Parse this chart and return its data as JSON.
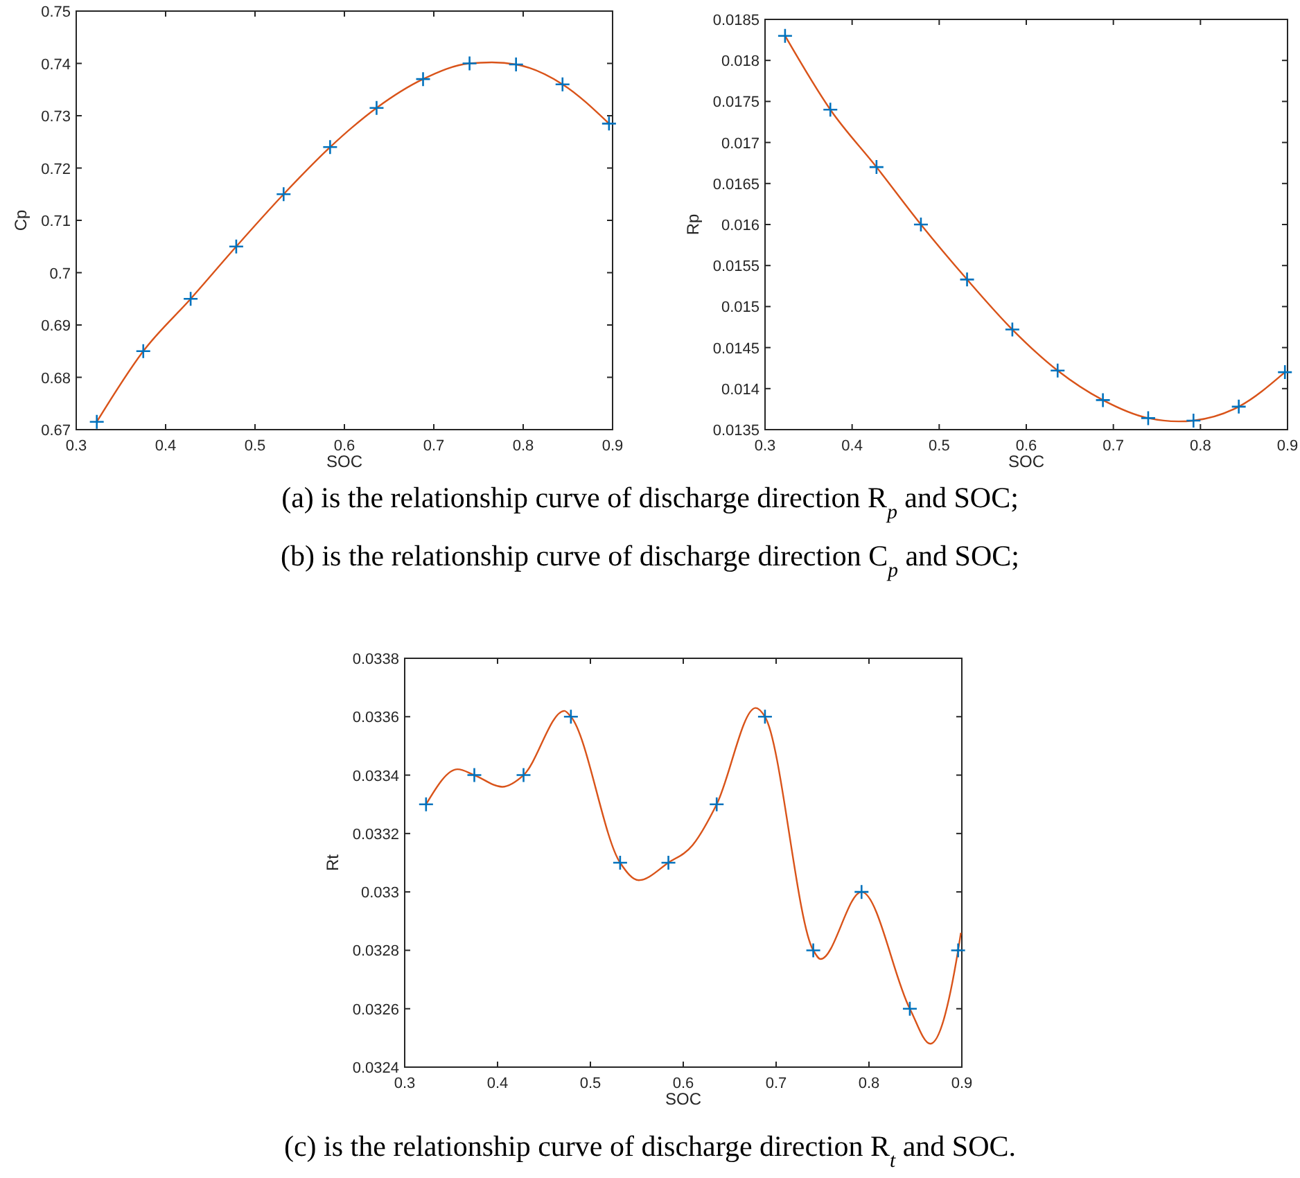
{
  "chart_data": [
    {
      "type": "line",
      "xlabel": "SOC",
      "ylabel": "Cp",
      "xlim": [
        0.3,
        0.9
      ],
      "xticks": [
        0.3,
        0.4,
        0.5,
        0.6,
        0.7,
        0.8,
        0.9
      ],
      "ylim": [
        0.67,
        0.75
      ],
      "yticks": [
        0.67,
        0.68,
        0.69,
        0.7,
        0.71,
        0.72,
        0.73,
        0.74,
        0.75
      ],
      "grid": false,
      "annotations": [
        "(a) is the relationship curve of discharge direction R$_{p}$ and SOC;"
      ],
      "series": [
        {
          "type": "line",
          "color": "#d95319",
          "marker": "none",
          "x": [
            0.323,
            0.375,
            0.428,
            0.479,
            0.532,
            0.584,
            0.636,
            0.688,
            0.74,
            0.765,
            0.792,
            0.844,
            0.896
          ],
          "values": [
            0.6715,
            0.685,
            0.695,
            0.705,
            0.715,
            0.724,
            0.7315,
            0.737,
            0.74,
            0.7402,
            0.7398,
            0.736,
            0.7285
          ]
        },
        {
          "type": "scatter",
          "color": "#0072bd",
          "marker": "cross",
          "x": [
            0.323,
            0.375,
            0.428,
            0.479,
            0.532,
            0.584,
            0.636,
            0.688,
            0.74,
            0.792,
            0.844,
            0.896
          ],
          "values": [
            0.6715,
            0.685,
            0.695,
            0.705,
            0.715,
            0.724,
            0.7315,
            0.737,
            0.74,
            0.7398,
            0.736,
            0.7285
          ]
        }
      ]
    },
    {
      "type": "line",
      "xlabel": "SOC",
      "ylabel": "Rp",
      "xlim": [
        0.3,
        0.9
      ],
      "xticks": [
        0.3,
        0.4,
        0.5,
        0.6,
        0.7,
        0.8,
        0.9
      ],
      "ylim": [
        0.0135,
        0.0185
      ],
      "yticks": [
        0.0135,
        0.014,
        0.0145,
        0.015,
        0.0155,
        0.016,
        0.0165,
        0.017,
        0.0175,
        0.018,
        0.0185
      ],
      "grid": false,
      "annotations": [
        "(b) is the relationship curve of discharge direction C$_{p}$ and SOC;"
      ],
      "series": [
        {
          "type": "line",
          "color": "#d95319",
          "marker": "none",
          "x": [
            0.323,
            0.375,
            0.428,
            0.479,
            0.532,
            0.584,
            0.636,
            0.688,
            0.74,
            0.775,
            0.792,
            0.844,
            0.897
          ],
          "values": [
            0.0183,
            0.0174,
            0.0167,
            0.016,
            0.01533,
            0.01472,
            0.01422,
            0.01386,
            0.01364,
            0.0136,
            0.01361,
            0.01378,
            0.0142
          ]
        },
        {
          "type": "scatter",
          "color": "#0072bd",
          "marker": "cross",
          "x": [
            0.323,
            0.375,
            0.428,
            0.479,
            0.532,
            0.584,
            0.636,
            0.688,
            0.74,
            0.792,
            0.844,
            0.897
          ],
          "values": [
            0.0183,
            0.0174,
            0.0167,
            0.016,
            0.01533,
            0.01472,
            0.01422,
            0.01386,
            0.01364,
            0.01361,
            0.01378,
            0.0142
          ]
        }
      ]
    },
    {
      "type": "line",
      "xlabel": "SOC",
      "ylabel": "Rt",
      "xlim": [
        0.3,
        0.9
      ],
      "xticks": [
        0.3,
        0.4,
        0.5,
        0.6,
        0.7,
        0.8,
        0.9
      ],
      "ylim": [
        0.0324,
        0.0338
      ],
      "yticks": [
        0.0324,
        0.0326,
        0.0328,
        0.033,
        0.0332,
        0.0334,
        0.0336,
        0.0338
      ],
      "grid": false,
      "annotations": [
        "(c) is the relationship curve of discharge direction R$_{t}$ and SOC."
      ],
      "series": [
        {
          "type": "line",
          "color": "#d95319",
          "marker": "none",
          "x": [
            0.323,
            0.357,
            0.375,
            0.405,
            0.428,
            0.472,
            0.479,
            0.532,
            0.552,
            0.584,
            0.61,
            0.636,
            0.678,
            0.688,
            0.74,
            0.748,
            0.792,
            0.844,
            0.866,
            0.896,
            0.899
          ],
          "values": [
            0.0333,
            0.03342,
            0.0334,
            0.03336,
            0.0334,
            0.03362,
            0.0336,
            0.0331,
            0.03304,
            0.0331,
            0.03316,
            0.0333,
            0.03363,
            0.0336,
            0.0328,
            0.03277,
            0.033,
            0.0326,
            0.03248,
            0.0328,
            0.03286
          ]
        },
        {
          "type": "scatter",
          "color": "#0072bd",
          "marker": "cross",
          "x": [
            0.323,
            0.375,
            0.428,
            0.479,
            0.532,
            0.584,
            0.636,
            0.688,
            0.74,
            0.792,
            0.844,
            0.896
          ],
          "values": [
            0.0333,
            0.0334,
            0.0334,
            0.0336,
            0.0331,
            0.0331,
            0.0333,
            0.0336,
            0.0328,
            0.033,
            0.0326,
            0.0328
          ]
        }
      ]
    }
  ]
}
